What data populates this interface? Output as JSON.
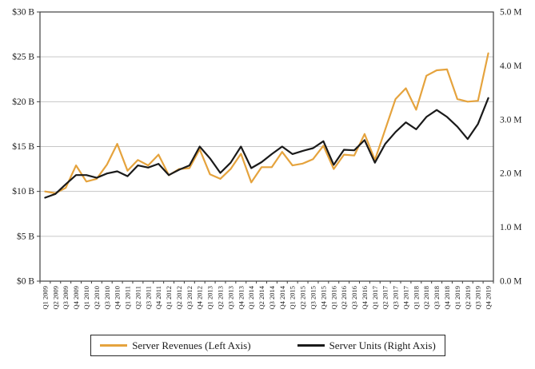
{
  "chart_data": {
    "type": "line",
    "title": "",
    "xlabel": "",
    "ylabel_left": "",
    "ylabel_right": "",
    "grid": true,
    "legend_position": "bottom",
    "categories": [
      "Q1 2009",
      "Q2 2009",
      "Q3 2009",
      "Q4 2009",
      "Q1 2010",
      "Q2 2010",
      "Q3 2010",
      "Q4 2010",
      "Q1 2011",
      "Q2 2011",
      "Q3 2011",
      "Q4 2011",
      "Q1 2012",
      "Q2 2012",
      "Q3 2012",
      "Q4 2012",
      "Q1 2013",
      "Q2 2013",
      "Q3 2013",
      "Q4 2013",
      "Q1 2014",
      "Q2 2014",
      "Q3 2014",
      "Q4 2014",
      "Q1 2015",
      "Q2 2015",
      "Q3 2015",
      "Q4 2015",
      "Q1 2016",
      "Q2 2016",
      "Q3 2016",
      "Q4 2016",
      "Q1 2017",
      "Q2 2017",
      "Q3 2017",
      "Q4 2017",
      "Q1 2018",
      "Q2 2018",
      "Q3 2018",
      "Q4 2018",
      "Q1 2019",
      "Q2 2019",
      "Q3 2019",
      "Q4 2019"
    ],
    "series": [
      {
        "name": "Server Revenues (Left Axis)",
        "axis": "left",
        "unit": "$B",
        "color": "#E5A33D",
        "values": [
          10.0,
          9.8,
          10.4,
          12.9,
          11.1,
          11.4,
          13.0,
          15.3,
          12.3,
          13.5,
          12.9,
          14.1,
          11.8,
          12.5,
          12.6,
          14.7,
          11.9,
          11.4,
          12.5,
          14.2,
          11.0,
          12.7,
          12.7,
          14.4,
          12.9,
          13.1,
          13.6,
          15.1,
          12.5,
          14.1,
          14.0,
          16.4,
          13.5,
          16.9,
          20.3,
          21.5,
          19.1,
          22.9,
          23.5,
          23.6,
          20.3,
          20.0,
          20.1,
          25.4
        ]
      },
      {
        "name": "Server Units (Right Axis)",
        "axis": "right",
        "unit": "M",
        "color": "#1A1A1A",
        "values": [
          1.55,
          1.62,
          1.8,
          1.97,
          1.97,
          1.92,
          2.0,
          2.04,
          1.95,
          2.15,
          2.11,
          2.18,
          1.97,
          2.07,
          2.15,
          2.5,
          2.28,
          2.01,
          2.2,
          2.5,
          2.1,
          2.21,
          2.36,
          2.5,
          2.36,
          2.42,
          2.47,
          2.6,
          2.16,
          2.44,
          2.43,
          2.62,
          2.2,
          2.55,
          2.77,
          2.95,
          2.82,
          3.05,
          3.18,
          3.05,
          2.87,
          2.64,
          2.92,
          3.4
        ]
      }
    ],
    "left_axis": {
      "min": 0,
      "max": 30,
      "step": 5,
      "tick_labels": [
        "$0 B",
        "$5 B",
        "$10 B",
        "$15 B",
        "$20 B",
        "$25 B",
        "$30 B"
      ]
    },
    "right_axis": {
      "min": 0,
      "max": 5,
      "step": 1,
      "tick_labels": [
        "0.0 M",
        "1.0 M",
        "2.0 M",
        "3.0 M",
        "4.0 M",
        "5.0 M"
      ]
    }
  },
  "legend": {
    "items": [
      {
        "label": "Server Revenues (Left Axis)",
        "color": "#E5A33D"
      },
      {
        "label": "Server Units (Right Axis)",
        "color": "#1A1A1A"
      }
    ]
  },
  "colors": {
    "background": "#FFFFFF",
    "gridline": "#C6C6C6",
    "plot_border": "#404040",
    "axis_text": "#1A1A1A",
    "revenue_line": "#E5A33D",
    "units_line": "#1A1A1A"
  }
}
